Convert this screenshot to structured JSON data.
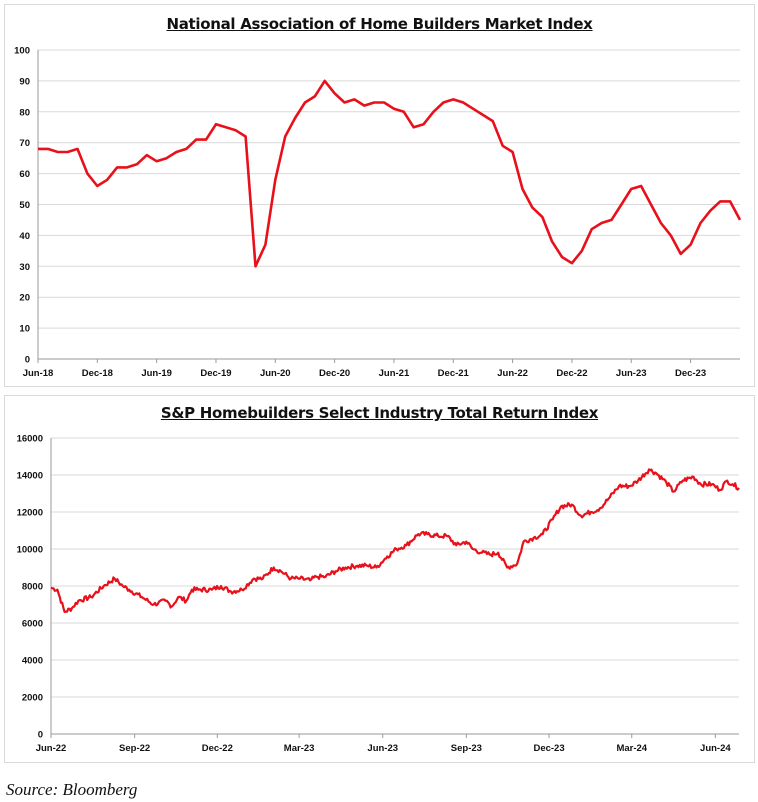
{
  "source": "Source: Bloomberg",
  "chart_data": [
    {
      "type": "line",
      "title": "National Association of Home Builders Market Index",
      "xlabel": "",
      "ylabel": "",
      "ylim": [
        0,
        100
      ],
      "yticks": [
        "0",
        "10",
        "20",
        "30",
        "40",
        "50",
        "60",
        "70",
        "80",
        "90",
        "100"
      ],
      "xticks": [
        "Jun-18",
        "Dec-18",
        "Jun-19",
        "Dec-19",
        "Jun-20",
        "Dec-20",
        "Jun-21",
        "Dec-21",
        "Jun-22",
        "Dec-22",
        "Jun-23",
        "Dec-23"
      ],
      "grid": true,
      "color": "#e8101a",
      "start": "Jun-18",
      "series": [
        {
          "values": [
            68,
            68,
            67,
            67,
            68,
            60,
            56,
            58,
            62,
            62,
            63,
            66,
            64,
            65,
            67,
            68,
            71,
            71,
            76,
            75,
            74,
            72,
            30,
            37,
            58,
            72,
            78,
            83,
            85,
            90,
            86,
            83,
            84,
            82,
            83,
            83,
            81,
            80,
            75,
            76,
            80,
            83,
            84,
            83,
            81,
            79,
            77,
            69,
            67,
            55,
            49,
            46,
            38,
            33,
            31,
            35,
            42,
            44,
            45,
            50,
            55,
            56,
            50,
            44,
            40,
            34,
            37,
            44,
            48,
            51,
            51,
            45
          ]
        }
      ]
    },
    {
      "type": "line",
      "title": "S&P Homebuilders Select Industry Total Return Index",
      "xlabel": "",
      "ylabel": "",
      "ylim": [
        0,
        16000
      ],
      "yticks": [
        "0",
        "2000",
        "4000",
        "6000",
        "8000",
        "10000",
        "12000",
        "14000",
        "16000"
      ],
      "xticks": [
        "Jun-22",
        "Sep-22",
        "Dec-22",
        "Mar-23",
        "Jun-23",
        "Sep-23",
        "Dec-23",
        "Mar-24",
        "Jun-24"
      ],
      "grid": true,
      "color": "#e8101a",
      "series": [
        {
          "x": [
            "2022-06-01",
            "2022-06-08",
            "2022-06-16",
            "2022-06-24",
            "2022-07-01",
            "2022-07-15",
            "2022-07-29",
            "2022-08-10",
            "2022-08-19",
            "2022-08-26",
            "2022-09-09",
            "2022-09-22",
            "2022-10-05",
            "2022-10-12",
            "2022-10-19",
            "2022-10-28",
            "2022-11-03",
            "2022-11-10",
            "2022-11-25",
            "2022-12-05",
            "2022-12-16",
            "2022-12-28",
            "2023-01-10",
            "2023-01-20",
            "2023-02-01",
            "2023-02-09",
            "2023-02-20",
            "2023-03-02",
            "2023-03-13",
            "2023-03-20",
            "2023-03-30",
            "2023-04-10",
            "2023-04-21",
            "2023-05-04",
            "2023-05-15",
            "2023-05-25",
            "2023-06-06",
            "2023-06-16",
            "2023-06-27",
            "2023-07-10",
            "2023-07-20",
            "2023-08-01",
            "2023-08-11",
            "2023-08-21",
            "2023-09-01",
            "2023-09-08",
            "2023-09-18",
            "2023-09-28",
            "2023-10-06",
            "2023-10-16",
            "2023-10-27",
            "2023-11-03",
            "2023-11-14",
            "2023-11-24",
            "2023-12-05",
            "2023-12-14",
            "2023-12-26",
            "2024-01-05",
            "2024-01-16",
            "2024-01-26",
            "2024-02-06",
            "2024-02-16",
            "2024-02-28",
            "2024-03-08",
            "2024-03-20",
            "2024-03-28",
            "2024-04-08",
            "2024-04-16",
            "2024-04-26",
            "2024-05-08",
            "2024-05-16",
            "2024-05-28",
            "2024-06-06",
            "2024-06-14",
            "2024-06-20",
            "2024-06-27"
          ],
          "values": [
            7900,
            7800,
            6600,
            6800,
            7200,
            7400,
            8000,
            8400,
            8000,
            7800,
            7400,
            7000,
            7200,
            6900,
            7400,
            7200,
            7800,
            7800,
            7800,
            8000,
            7700,
            7800,
            8400,
            8400,
            9000,
            8800,
            8400,
            8400,
            8300,
            8500,
            8500,
            8800,
            9000,
            9100,
            9100,
            9000,
            9600,
            10000,
            10200,
            10800,
            10800,
            10700,
            10700,
            10200,
            10400,
            10000,
            9800,
            9700,
            9800,
            9000,
            9200,
            10400,
            10600,
            10800,
            11600,
            12300,
            12400,
            11800,
            12000,
            12200,
            12800,
            13400,
            13400,
            13700,
            14300,
            14100,
            13600,
            13100,
            13700,
            13900,
            13500,
            13500,
            13200,
            13700,
            13500,
            13300
          ]
        }
      ]
    }
  ]
}
